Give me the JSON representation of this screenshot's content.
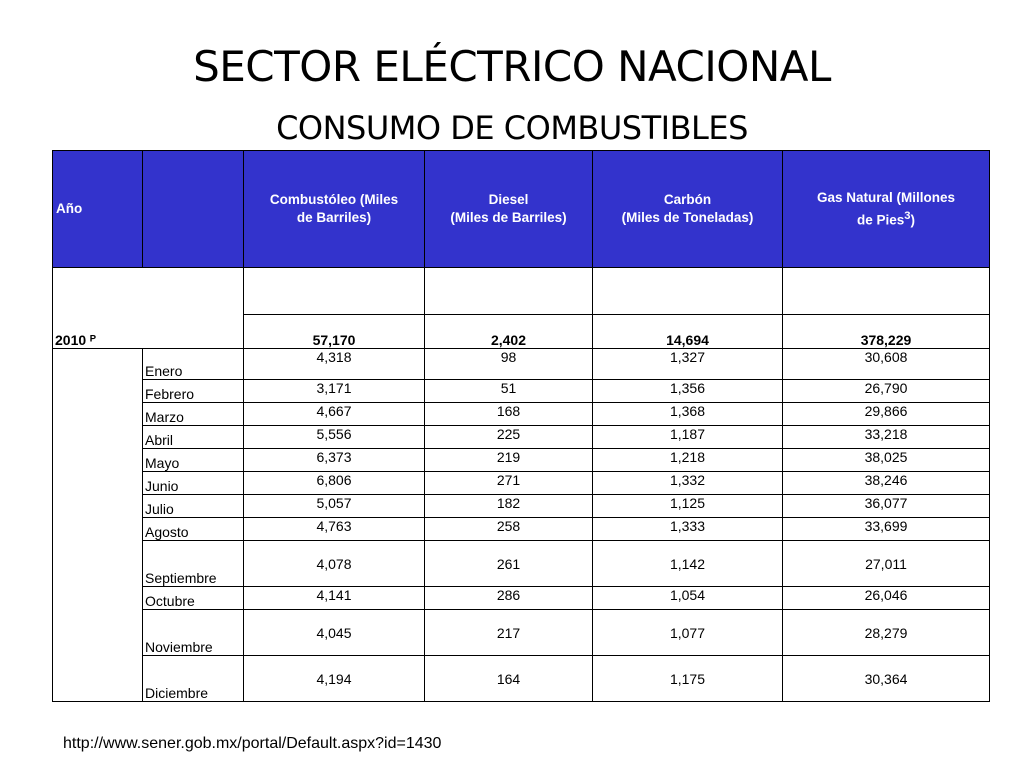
{
  "slide": {
    "title": "SECTOR ELÉCTRICO NACIONAL",
    "subtitle": "CONSUMO DE COMBUSTIBLES",
    "source": "http://www.sener.gob.mx/portal/Default.aspx?id=1430"
  },
  "table": {
    "headers": {
      "year": "Año",
      "month": "",
      "fuel_oil_1": "Combustóleo  (Miles",
      "fuel_oil_2": "de Barriles)",
      "diesel_1": "Diesel",
      "diesel_2": "(Miles de Barriles)",
      "coal_1": "Carbón",
      "coal_2": "(Miles de Toneladas)",
      "gas_1": "Gas Natural  (Millones",
      "gas_2a": "de Pies",
      "gas_sup": "3",
      "gas_2b": ")"
    },
    "year_label": "2010 ᴾ",
    "totals": [
      "57,170",
      "2,402",
      "14,694",
      "378,229"
    ],
    "rows": [
      {
        "month": "Enero",
        "values": [
          "4,318",
          "98",
          "1,327",
          "30,608"
        ]
      },
      {
        "month": "Febrero",
        "values": [
          "3,171",
          "51",
          "1,356",
          "26,790"
        ]
      },
      {
        "month": "Marzo",
        "values": [
          "4,667",
          "168",
          "1,368",
          "29,866"
        ]
      },
      {
        "month": "Abril",
        "values": [
          "5,556",
          "225",
          "1,187",
          "33,218"
        ]
      },
      {
        "month": "Mayo",
        "values": [
          "6,373",
          "219",
          "1,218",
          "38,025"
        ]
      },
      {
        "month": "Junio",
        "values": [
          "6,806",
          "271",
          "1,332",
          "38,246"
        ]
      },
      {
        "month": "Julio",
        "values": [
          "5,057",
          "182",
          "1,125",
          "36,077"
        ]
      },
      {
        "month": "Agosto",
        "values": [
          "4,763",
          "258",
          "1,333",
          "33,699"
        ]
      },
      {
        "month": "Septiembre",
        "values": [
          "4,078",
          "261",
          "1,142",
          "27,011"
        ]
      },
      {
        "month": "Octubre",
        "values": [
          "4,141",
          "286",
          "1,054",
          "26,046"
        ]
      },
      {
        "month": "Noviembre",
        "values": [
          "4,045",
          "217",
          "1,077",
          "28,279"
        ]
      },
      {
        "month": "Diciembre",
        "values": [
          "4,194",
          "164",
          "1,175",
          "30,364"
        ]
      }
    ]
  },
  "colors": {
    "header_bg": "#3333cc",
    "header_text": "#ffffff"
  }
}
